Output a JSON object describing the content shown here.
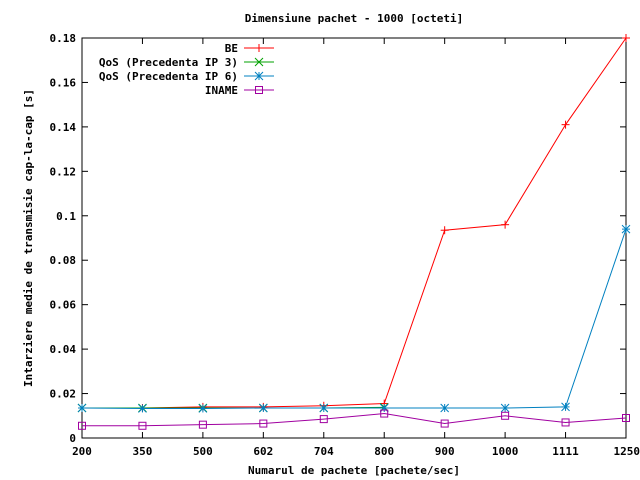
{
  "chart_data": {
    "type": "line",
    "title": "Dimensiune pachet - 1000 [octeti]",
    "xlabel": "Numarul de pachete [pachete/sec]",
    "ylabel": "Intarziere medie de transmisie cap-la-cap [s]",
    "categories": [
      "200",
      "350",
      "500",
      "602",
      "704",
      "800",
      "900",
      "1000",
      "1111",
      "1250"
    ],
    "ylim": [
      0,
      0.18
    ],
    "yticks": [
      "0",
      "0.02",
      "0.04",
      "0.06",
      "0.08",
      "0.1",
      "0.12",
      "0.14",
      "0.16",
      "0.18"
    ],
    "yticks_values": [
      0,
      0.02,
      0.04,
      0.06,
      0.08,
      0.1,
      0.12,
      0.14,
      0.16,
      0.18
    ],
    "grid": false,
    "legend_position": "top-left",
    "series": [
      {
        "name": "BE",
        "color": "#ff0000",
        "marker": "plus",
        "values": [
          0.0135,
          0.0135,
          0.014,
          0.014,
          0.0145,
          0.0155,
          0.0935,
          0.096,
          0.141,
          0.18
        ]
      },
      {
        "name": "QoS (Precedenta IP 3)",
        "color": "#00a000",
        "marker": "cross",
        "values": [
          0.0135,
          0.0135,
          0.0135,
          0.0135,
          0.0135,
          0.0138,
          null,
          null,
          null,
          null
        ]
      },
      {
        "name": "QoS (Precedenta IP 6)",
        "color": "#0080c0",
        "marker": "star",
        "values": [
          0.0135,
          0.0133,
          0.0133,
          0.0135,
          0.0135,
          0.0135,
          0.0135,
          0.0135,
          0.014,
          0.094
        ]
      },
      {
        "name": "INAME",
        "color": "#a000a0",
        "marker": "square",
        "values": [
          0.0055,
          0.0055,
          0.006,
          0.0065,
          0.0085,
          0.011,
          0.0065,
          0.01,
          0.007,
          0.009
        ]
      }
    ]
  }
}
